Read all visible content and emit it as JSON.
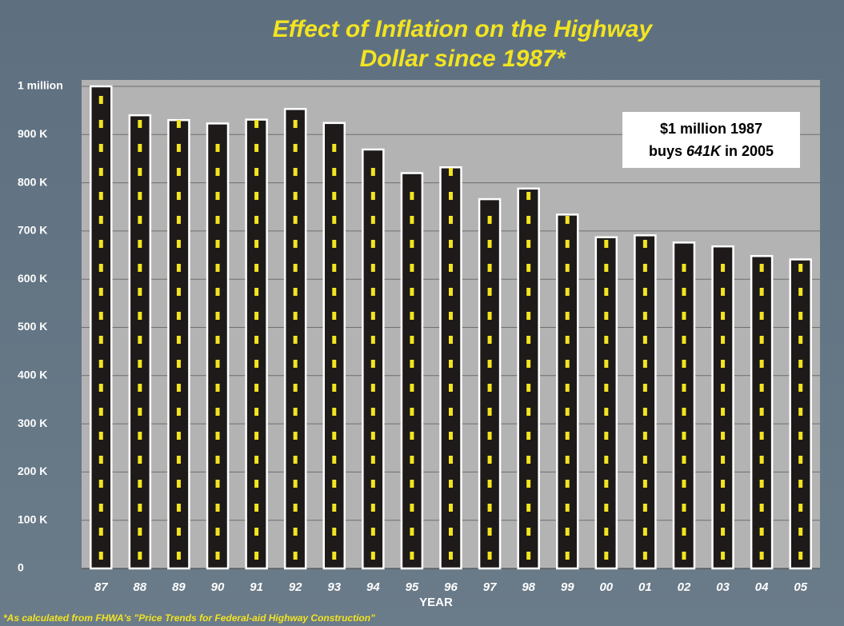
{
  "chart_data": {
    "type": "bar",
    "title": [
      "Effect of Inflation on the Highway",
      "Dollar since 1987*"
    ],
    "x_label": "YEAR",
    "footnote": "*As calculated from FHWA's \"Price Trends for Federal-aid Highway Construction\"",
    "annotation": {
      "line1": "$1 million 1987",
      "line2": [
        "buys ",
        "641K",
        " in 2005"
      ]
    },
    "categories": [
      "87",
      "88",
      "89",
      "90",
      "91",
      "92",
      "93",
      "94",
      "95",
      "96",
      "97",
      "98",
      "99",
      "00",
      "01",
      "02",
      "03",
      "04",
      "05"
    ],
    "values": [
      1000,
      940,
      930,
      923,
      931,
      953,
      924,
      869,
      820,
      832,
      766,
      788,
      734,
      687,
      691,
      676,
      668,
      648,
      641
    ],
    "color": "#1e1a1a",
    "ylim": [
      0,
      1000
    ],
    "yticks": [
      0,
      {
        "value": 100,
        "label": "100 K"
      },
      {
        "value": 200,
        "label": "200 K"
      },
      {
        "value": 300,
        "label": "300 K"
      },
      {
        "value": 400,
        "label": "400 K"
      },
      {
        "value": 500,
        "label": "500 K"
      },
      {
        "value": 600,
        "label": "600 K"
      },
      {
        "value": 700,
        "label": "700 K"
      },
      {
        "value": 800,
        "label": "800 K"
      },
      {
        "value": 900,
        "label": "900 K"
      },
      {
        "value": 1000,
        "label": "1 million"
      }
    ],
    "grid": true
  }
}
